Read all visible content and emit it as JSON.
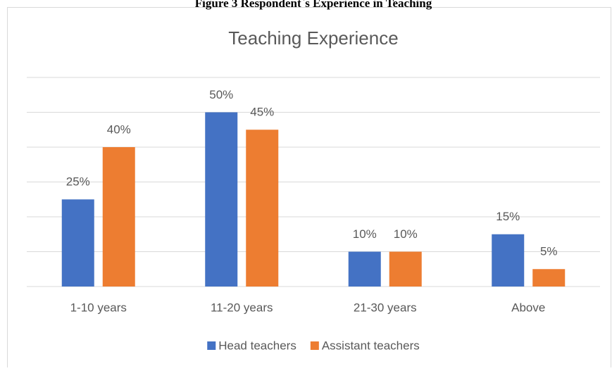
{
  "chart_data": {
    "type": "bar",
    "caption": "Figure 3 Respondent`s Experience in Teaching",
    "title": "Teaching Experience",
    "categories": [
      "1-10 years",
      "11-20 years",
      "21-30 years",
      "Above"
    ],
    "series": [
      {
        "name": "Head teachers",
        "color": "#4472c4",
        "values": [
          25,
          50,
          10,
          15
        ],
        "value_labels": [
          "25%",
          "50%",
          "10%",
          "15%"
        ]
      },
      {
        "name": "Assistant teachers",
        "color": "#ed7d31",
        "values": [
          40,
          45,
          10,
          5
        ],
        "value_labels": [
          "40%",
          "45%",
          "10%",
          "5%"
        ]
      }
    ],
    "ylim": [
      0,
      60
    ],
    "yticks": [
      0,
      10,
      20,
      30,
      40,
      50,
      60
    ],
    "grid": true,
    "legend": "bottom"
  }
}
